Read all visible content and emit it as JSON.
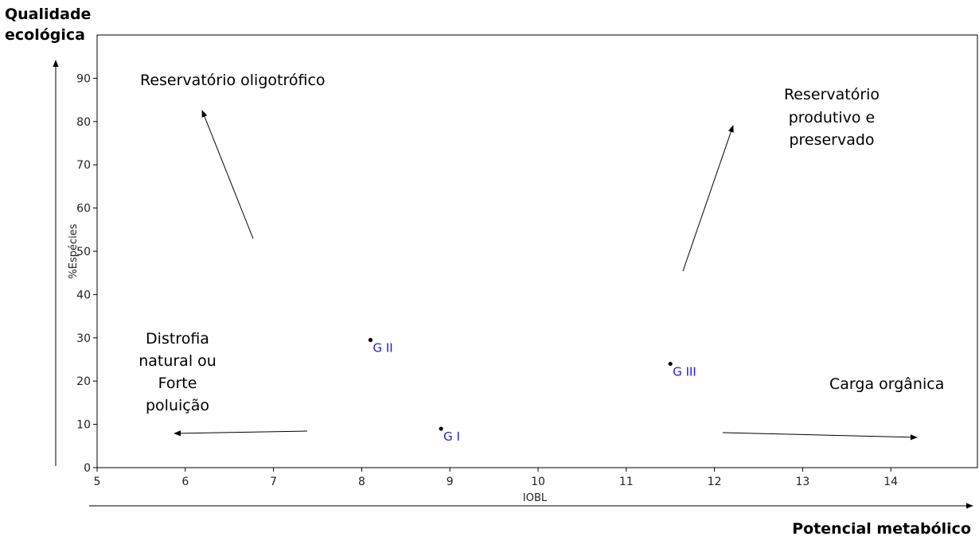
{
  "chart_data": {
    "type": "scatter",
    "xlabel": "IOBL",
    "ylabel": "%Espécies",
    "xlim": [
      5,
      15
    ],
    "ylim": [
      0,
      95
    ],
    "xticks": [
      5,
      6,
      7,
      8,
      9,
      10,
      11,
      12,
      13,
      14
    ],
    "yticks": [
      0,
      10,
      20,
      30,
      40,
      50,
      60,
      70,
      80,
      90
    ],
    "grid": false,
    "points": [
      {
        "label": "G I",
        "x": 8.9,
        "y": 9
      },
      {
        "label": "G II",
        "x": 8.1,
        "y": 29.5
      },
      {
        "label": "G III",
        "x": 11.5,
        "y": 24
      }
    ],
    "outer_y_label": [
      "Qualidade",
      "ecológica"
    ],
    "outer_x_label": "Potencial metabólico",
    "annotations": [
      {
        "lines": [
          "Reservatório oligotrófico"
        ]
      },
      {
        "lines": [
          "Reservatório",
          "produtivo e",
          "preservado"
        ]
      },
      {
        "lines": [
          "Distrofia",
          "natural ou",
          "Forte",
          "poluição"
        ]
      },
      {
        "lines": [
          "Carga orgânica"
        ]
      }
    ]
  }
}
